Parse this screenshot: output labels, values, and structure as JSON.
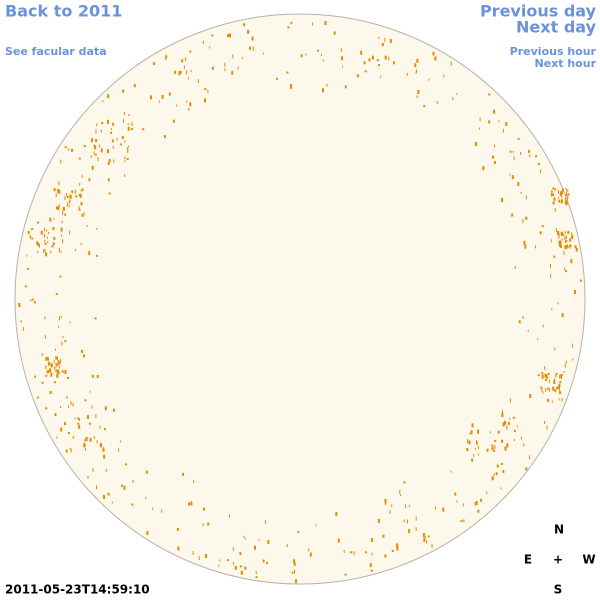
{
  "links": {
    "back": "Back to 2011",
    "facular": "See facular data",
    "previous_day": "Previous day",
    "next_day": "Next day",
    "previous_hour": "Previous hour",
    "next_hour": "Next hour"
  },
  "timestamp": "2011-05-23T14:59:10",
  "compass": {
    "north": "N",
    "east": "E",
    "center": "+",
    "west": "W",
    "south": "S"
  }
}
